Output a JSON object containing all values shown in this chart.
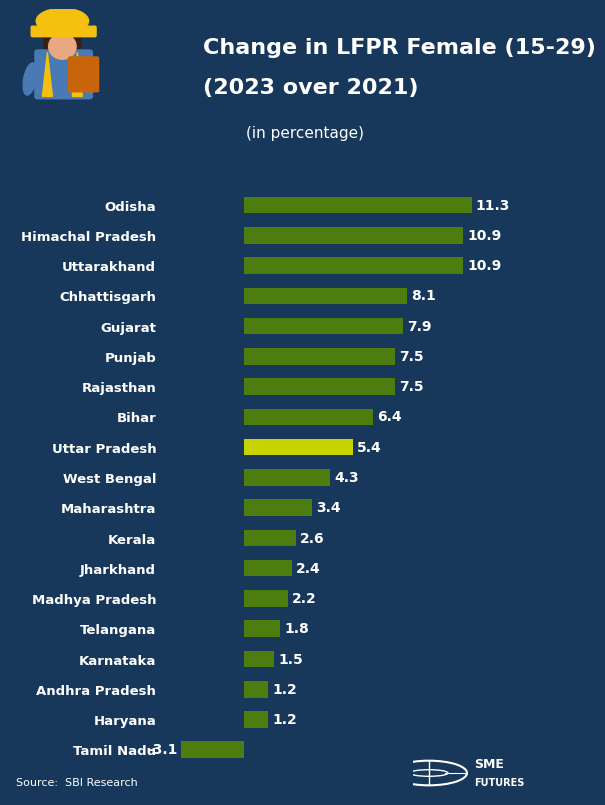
{
  "title_line1": "Change in LFPR Female (15-29)",
  "title_line2": "(2023 over 2021)",
  "subtitle": "(in percentage)",
  "source": "Source:  SBI Research",
  "background_color": "#17385a",
  "text_color": "#ffffff",
  "categories": [
    "Odisha",
    "Himachal Pradesh",
    "Uttarakhand",
    "Chhattisgarh",
    "Gujarat",
    "Punjab",
    "Rajasthan",
    "Bihar",
    "Uttar Pradesh",
    "West Bengal",
    "Maharashtra",
    "Kerala",
    "Jharkhand",
    "Madhya Pradesh",
    "Telangana",
    "Karnataka",
    "Andhra Pradesh",
    "Haryana",
    "Tamil Nadu"
  ],
  "values": [
    11.3,
    10.9,
    10.9,
    8.1,
    7.9,
    7.5,
    7.5,
    6.4,
    5.4,
    4.3,
    3.4,
    2.6,
    2.4,
    2.2,
    1.8,
    1.5,
    1.2,
    1.2,
    -3.1
  ],
  "bar_colors": [
    "#4d7c0f",
    "#4d7c0f",
    "#4d7c0f",
    "#4d7c0f",
    "#4d7c0f",
    "#4d7c0f",
    "#4d7c0f",
    "#4d7c0f",
    "#c8d400",
    "#4d7c0f",
    "#4d7c0f",
    "#4d7c0f",
    "#4d7c0f",
    "#4d7c0f",
    "#4d7c0f",
    "#4d7c0f",
    "#4d7c0f",
    "#4d7c0f",
    "#4d7c0f"
  ],
  "xlim": [
    -4,
    14
  ],
  "bar_height": 0.55,
  "value_label_fontsize": 10,
  "category_label_fontsize": 9.5,
  "title_fontsize": 16,
  "subtitle_fontsize": 11
}
